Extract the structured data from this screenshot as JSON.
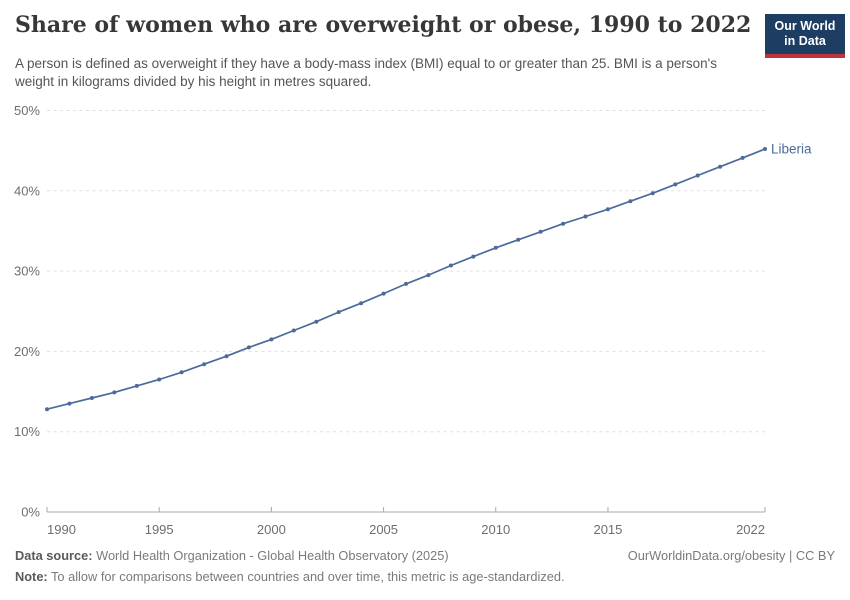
{
  "header": {
    "title": "Share of women who are overweight or obese, 1990 to 2022",
    "subtitle": "A person is defined as overweight if they have a body-mass index (BMI) equal to or greater than 25. BMI is a person's weight in kilograms divided by his height in metres squared.",
    "logo": {
      "line1": "Our World",
      "line2": "in Data"
    }
  },
  "chart_data": {
    "type": "line",
    "title": "Share of women who are overweight or obese, 1990 to 2022",
    "x": [
      1990,
      1991,
      1992,
      1993,
      1994,
      1995,
      1996,
      1997,
      1998,
      1999,
      2000,
      2001,
      2002,
      2003,
      2004,
      2005,
      2006,
      2007,
      2008,
      2009,
      2010,
      2011,
      2012,
      2013,
      2014,
      2015,
      2016,
      2017,
      2018,
      2019,
      2020,
      2021,
      2022
    ],
    "series": [
      {
        "name": "Liberia",
        "color": "#4C6A9C",
        "values": [
          12.8,
          13.5,
          14.2,
          14.9,
          15.7,
          16.5,
          17.4,
          18.4,
          19.4,
          20.5,
          21.5,
          22.6,
          23.7,
          24.9,
          26.0,
          27.2,
          28.4,
          29.5,
          30.7,
          31.8,
          32.9,
          33.9,
          34.9,
          35.9,
          36.8,
          37.7,
          38.7,
          39.7,
          40.8,
          41.9,
          43.0,
          44.1,
          45.2
        ]
      }
    ],
    "xlabel": "",
    "ylabel": "",
    "ylim": [
      0,
      50
    ],
    "ytick_values": [
      0,
      10,
      20,
      30,
      40,
      50
    ],
    "ytick_labels": [
      "0%",
      "10%",
      "20%",
      "30%",
      "40%",
      "50%"
    ],
    "xtick_values": [
      1990,
      1995,
      2000,
      2005,
      2010,
      2015,
      2022
    ],
    "xtick_labels": [
      "1990",
      "1995",
      "2000",
      "2005",
      "2010",
      "2015",
      "2022"
    ],
    "grid": "horizontal-dashed",
    "legend_position": "end-of-line-label",
    "end_label": "Liberia"
  },
  "footer": {
    "datasource_label": "Data source:",
    "datasource_text": "World Health Organization - Global Health Observatory (2025)",
    "note_label": "Note:",
    "note_text": "To allow for comparisons between countries and over time, this metric is age-standardized.",
    "license_text": "OurWorldinData.org/obesity | CC BY"
  },
  "colors": {
    "line": "#4C6A9C",
    "grid": "#e0e0e0",
    "axis": "#a8a8a8",
    "tick_label": "#6e6e6e",
    "logo_bg": "#1d3d63",
    "logo_red": "#c0323d"
  }
}
